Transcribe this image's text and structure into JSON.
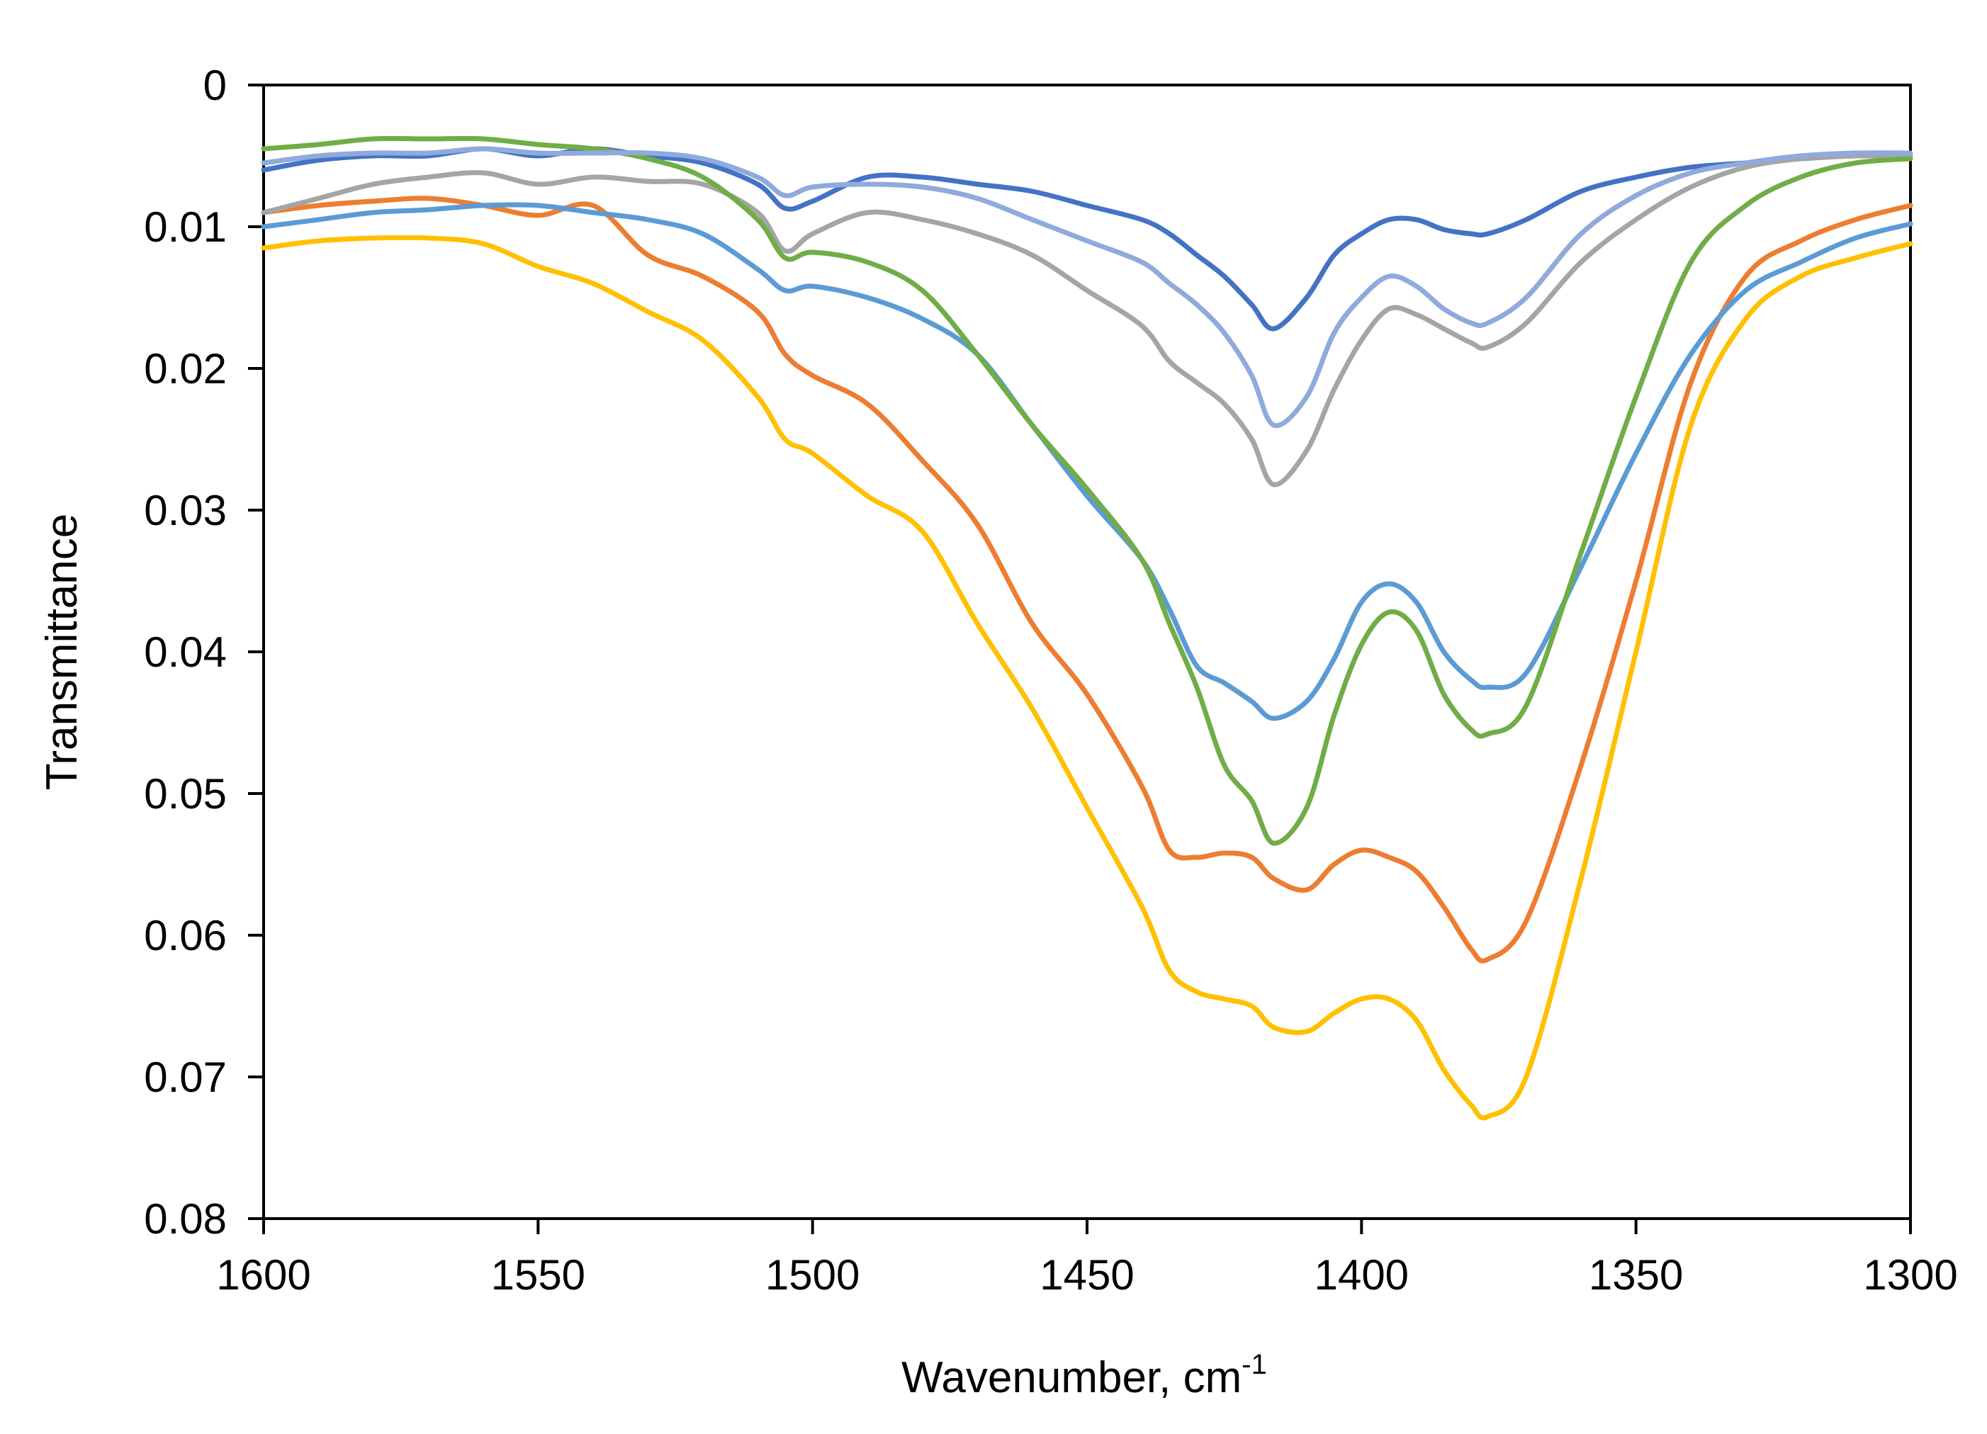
{
  "chart_data": {
    "type": "line",
    "title": "",
    "xlabel": "Wavenumber, cm",
    "xlabel_superscript": "-1",
    "ylabel": "Transmittance",
    "xlim": [
      1600,
      1300
    ],
    "ylim": [
      0,
      0.08
    ],
    "y_inverted": true,
    "xticks": [
      "1600",
      "1550",
      "1500",
      "1450",
      "1400",
      "1350",
      "1300"
    ],
    "xtick_values": [
      1600,
      1550,
      1500,
      1450,
      1400,
      1350,
      1300
    ],
    "yticks": [
      "0",
      "0.01",
      "0.02",
      "0.03",
      "0.04",
      "0.05",
      "0.06",
      "0.07",
      "0.08"
    ],
    "ytick_values": [
      0,
      0.01,
      0.02,
      0.03,
      0.04,
      0.05,
      0.06,
      0.07,
      0.08
    ],
    "grid": false,
    "legend": "none",
    "x": [
      1600,
      1590,
      1580,
      1570,
      1560,
      1550,
      1540,
      1530,
      1520,
      1510,
      1505,
      1500,
      1490,
      1480,
      1470,
      1460,
      1450,
      1440,
      1435,
      1430,
      1425,
      1420,
      1416,
      1410,
      1405,
      1400,
      1395,
      1390,
      1385,
      1380,
      1377,
      1370,
      1360,
      1350,
      1340,
      1330,
      1320,
      1310,
      1300
    ],
    "series": [
      {
        "name": "series-1",
        "color": "#4472C4",
        "values": [
          0.006,
          0.0053,
          0.005,
          0.005,
          0.0045,
          0.005,
          0.0045,
          0.005,
          0.0055,
          0.007,
          0.0087,
          0.0082,
          0.0065,
          0.0065,
          0.007,
          0.0075,
          0.0085,
          0.0095,
          0.0105,
          0.012,
          0.0135,
          0.0155,
          0.0172,
          0.015,
          0.012,
          0.0105,
          0.0095,
          0.0095,
          0.0102,
          0.0105,
          0.0105,
          0.0095,
          0.0075,
          0.0065,
          0.0058,
          0.0055,
          0.0052,
          0.005,
          0.005
        ]
      },
      {
        "name": "series-2",
        "color": "#ED7D31",
        "values": [
          0.009,
          0.0085,
          0.0082,
          0.008,
          0.0085,
          0.0092,
          0.0085,
          0.012,
          0.0135,
          0.016,
          0.019,
          0.0205,
          0.0225,
          0.0265,
          0.031,
          0.038,
          0.043,
          0.0495,
          0.054,
          0.0545,
          0.0542,
          0.0545,
          0.056,
          0.0568,
          0.055,
          0.054,
          0.0545,
          0.0555,
          0.058,
          0.061,
          0.0617,
          0.059,
          0.048,
          0.035,
          0.021,
          0.0135,
          0.011,
          0.0095,
          0.0085
        ]
      },
      {
        "name": "series-3",
        "color": "#A5A5A5",
        "values": [
          0.009,
          0.008,
          0.007,
          0.0065,
          0.0062,
          0.007,
          0.0065,
          0.0068,
          0.007,
          0.009,
          0.0117,
          0.0105,
          0.009,
          0.0095,
          0.0105,
          0.012,
          0.0145,
          0.017,
          0.0195,
          0.021,
          0.0225,
          0.025,
          0.0282,
          0.0258,
          0.0215,
          0.018,
          0.0158,
          0.0162,
          0.0172,
          0.0182,
          0.0185,
          0.0168,
          0.0125,
          0.0095,
          0.0072,
          0.0058,
          0.0052,
          0.005,
          0.005
        ]
      },
      {
        "name": "series-4",
        "color": "#FFC000",
        "values": [
          0.0115,
          0.011,
          0.0108,
          0.0108,
          0.0112,
          0.0128,
          0.014,
          0.016,
          0.018,
          0.022,
          0.025,
          0.026,
          0.029,
          0.0315,
          0.038,
          0.044,
          0.051,
          0.058,
          0.0625,
          0.064,
          0.0645,
          0.065,
          0.0665,
          0.0668,
          0.0655,
          0.0645,
          0.0645,
          0.066,
          0.0695,
          0.072,
          0.0728,
          0.07,
          0.056,
          0.04,
          0.024,
          0.0165,
          0.0135,
          0.0122,
          0.0112
        ]
      },
      {
        "name": "series-5",
        "color": "#5B9BD5",
        "values": [
          0.01,
          0.0095,
          0.009,
          0.0088,
          0.0085,
          0.0085,
          0.009,
          0.0095,
          0.0105,
          0.013,
          0.0145,
          0.0142,
          0.015,
          0.0165,
          0.019,
          0.024,
          0.029,
          0.0335,
          0.037,
          0.041,
          0.0422,
          0.0435,
          0.0447,
          0.0435,
          0.0405,
          0.0365,
          0.0352,
          0.0365,
          0.04,
          0.042,
          0.0425,
          0.0415,
          0.034,
          0.026,
          0.019,
          0.0145,
          0.0125,
          0.0108,
          0.0098
        ]
      },
      {
        "name": "series-6",
        "color": "#70AD47",
        "values": [
          0.0045,
          0.0042,
          0.0038,
          0.0038,
          0.0038,
          0.0042,
          0.0045,
          0.0052,
          0.0065,
          0.0095,
          0.0122,
          0.0118,
          0.0125,
          0.0145,
          0.019,
          0.024,
          0.0285,
          0.0335,
          0.038,
          0.0425,
          0.048,
          0.0505,
          0.0535,
          0.051,
          0.0445,
          0.0395,
          0.0372,
          0.0385,
          0.043,
          0.0455,
          0.0458,
          0.0438,
          0.033,
          0.022,
          0.0125,
          0.0085,
          0.0065,
          0.0055,
          0.0052
        ]
      },
      {
        "name": "series-7",
        "color": "#8FAADC",
        "values": [
          0.0055,
          0.005,
          0.0048,
          0.0048,
          0.0045,
          0.0048,
          0.0048,
          0.0048,
          0.0052,
          0.0065,
          0.0078,
          0.0072,
          0.007,
          0.0072,
          0.008,
          0.0095,
          0.011,
          0.0125,
          0.014,
          0.0155,
          0.0175,
          0.0205,
          0.024,
          0.022,
          0.0175,
          0.015,
          0.0135,
          0.0142,
          0.0158,
          0.0168,
          0.0168,
          0.015,
          0.0105,
          0.0078,
          0.0062,
          0.0055,
          0.005,
          0.0048,
          0.0048
        ]
      }
    ]
  }
}
